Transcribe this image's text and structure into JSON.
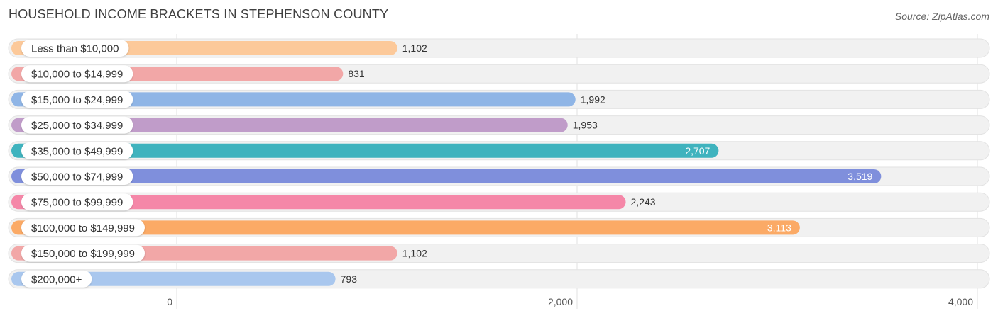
{
  "header": {
    "title": "HOUSEHOLD INCOME BRACKETS IN STEPHENSON COUNTY",
    "source": "Source: ZipAtlas.com"
  },
  "chart_data": {
    "type": "bar",
    "orientation": "horizontal",
    "title": "HOUSEHOLD INCOME BRACKETS IN STEPHENSON COUNTY",
    "categories": [
      "Less than $10,000",
      "$10,000 to $14,999",
      "$15,000 to $24,999",
      "$25,000 to $34,999",
      "$35,000 to $49,999",
      "$50,000 to $74,999",
      "$75,000 to $99,999",
      "$100,000 to $149,999",
      "$150,000 to $199,999",
      "$200,000+"
    ],
    "values": [
      1102,
      831,
      1992,
      1953,
      2707,
      3519,
      2243,
      3113,
      1102,
      793
    ],
    "value_labels": [
      "1,102",
      "831",
      "1,992",
      "1,953",
      "2,707",
      "3,519",
      "2,243",
      "3,113",
      "1,102",
      "793"
    ],
    "colors": [
      "#fcc99a",
      "#f2a7a7",
      "#8fb5e6",
      "#c09cc9",
      "#3fb3be",
      "#7f8fdc",
      "#f587a8",
      "#fbaa66",
      "#f2a7a7",
      "#a9c7ee"
    ],
    "xlim": [
      0,
      4000
    ],
    "xticks": [
      0,
      2000,
      4000
    ],
    "xtick_labels": [
      "0",
      "2,000",
      "4,000"
    ],
    "grid": true
  }
}
